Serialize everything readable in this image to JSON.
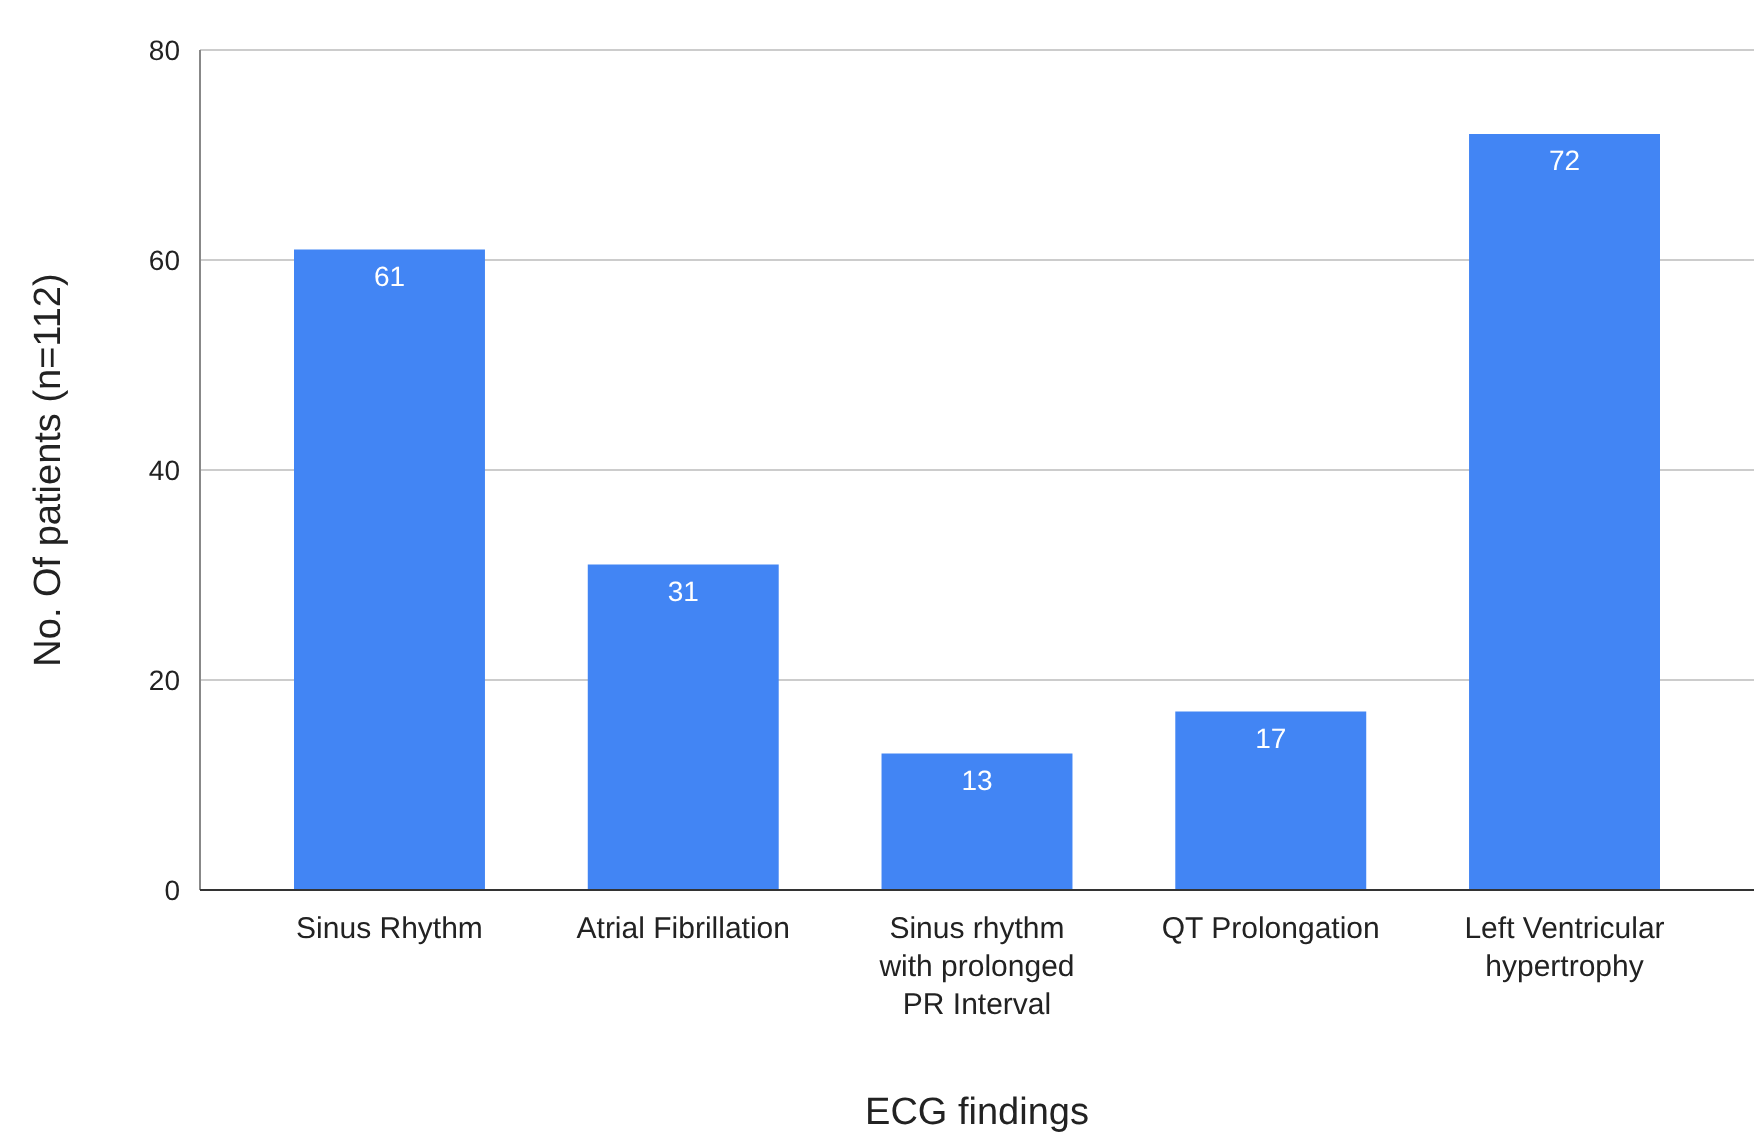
{
  "chart_data": {
    "type": "bar",
    "xlabel": "ECG findings",
    "ylabel": "No. Of patients (n=112)",
    "categories": [
      "Sinus Rhythm",
      "Atrial Fibrillation",
      "Sinus rhythm with prolonged PR Interval",
      "QT Prolongation",
      "Left Ventricular hypertrophy"
    ],
    "values": [
      61,
      31,
      13,
      17,
      72
    ],
    "color": "#4285f4",
    "ylim": [
      0,
      80
    ],
    "yticks": [
      0,
      20,
      40,
      60,
      80
    ],
    "grid": true,
    "data_labels": true
  }
}
